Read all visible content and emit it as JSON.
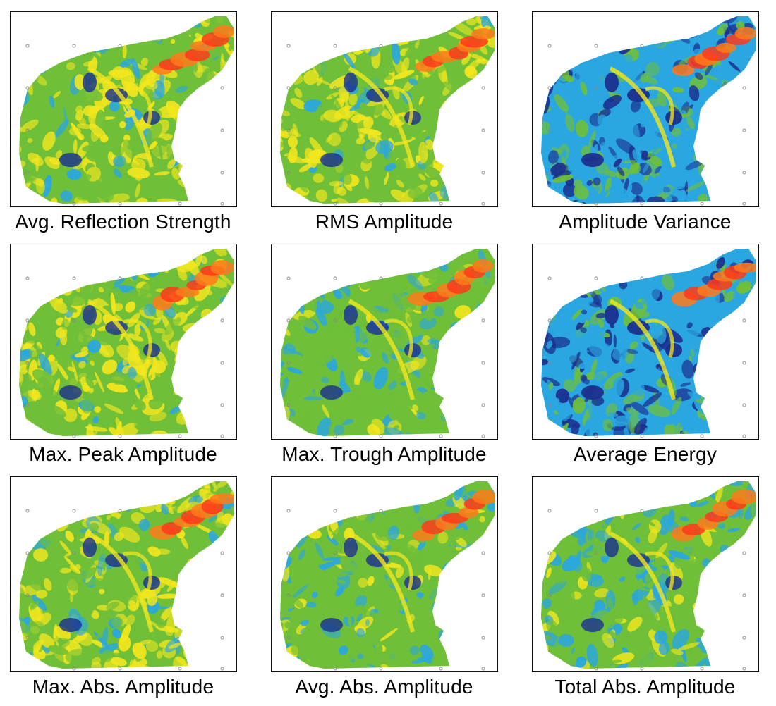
{
  "figure": {
    "panels": [
      {
        "label": "Avg. Reflection Strength",
        "theme": "yellow-dominant",
        "colors": {
          "hot": "#ff3a1a",
          "warm": "#f2e61e",
          "mid": "#6fbf38",
          "cool": "#2aa7e0",
          "cold": "#1b2f8f"
        }
      },
      {
        "label": "RMS Amplitude",
        "theme": "yellow-dominant",
        "colors": {
          "hot": "#ff3a1a",
          "warm": "#f2e61e",
          "mid": "#6fbf38",
          "cool": "#2aa7e0",
          "cold": "#1b2f8f"
        }
      },
      {
        "label": "Amplitude Variance",
        "theme": "blue-dominant",
        "colors": {
          "hot": "#ff3a1a",
          "warm": "#f2e61e",
          "mid": "#6fbf38",
          "cool": "#2aa7e0",
          "cold": "#1b2f8f"
        }
      },
      {
        "label": "Max. Peak Amplitude",
        "theme": "yellow-dominant",
        "colors": {
          "hot": "#ff3a1a",
          "warm": "#f2e61e",
          "mid": "#6fbf38",
          "cool": "#2aa7e0",
          "cold": "#1b2f8f"
        }
      },
      {
        "label": "Max. Trough Amplitude",
        "theme": "green-dominant",
        "colors": {
          "hot": "#ff3a1a",
          "warm": "#f2e61e",
          "mid": "#6fbf38",
          "cool": "#2aa7e0",
          "cold": "#1b2f8f"
        }
      },
      {
        "label": "Average Energy",
        "theme": "blue-dominant",
        "colors": {
          "hot": "#ff3a1a",
          "warm": "#f2e61e",
          "mid": "#6fbf38",
          "cool": "#2aa7e0",
          "cold": "#1b2f8f"
        }
      },
      {
        "label": "Max. Abs. Amplitude",
        "theme": "yellow-dominant",
        "colors": {
          "hot": "#ff3a1a",
          "warm": "#f2e61e",
          "mid": "#6fbf38",
          "cool": "#2aa7e0",
          "cold": "#1b2f8f"
        }
      },
      {
        "label": "Avg. Abs. Amplitude",
        "theme": "green-dominant",
        "colors": {
          "hot": "#ff3a1a",
          "warm": "#f2e61e",
          "mid": "#6fbf38",
          "cool": "#2aa7e0",
          "cold": "#1b2f8f"
        }
      },
      {
        "label": "Total Abs. Amplitude",
        "theme": "green-dominant",
        "colors": {
          "hot": "#ff3a1a",
          "warm": "#f2e61e",
          "mid": "#6fbf38",
          "cool": "#2aa7e0",
          "cold": "#1b2f8f"
        }
      }
    ]
  }
}
